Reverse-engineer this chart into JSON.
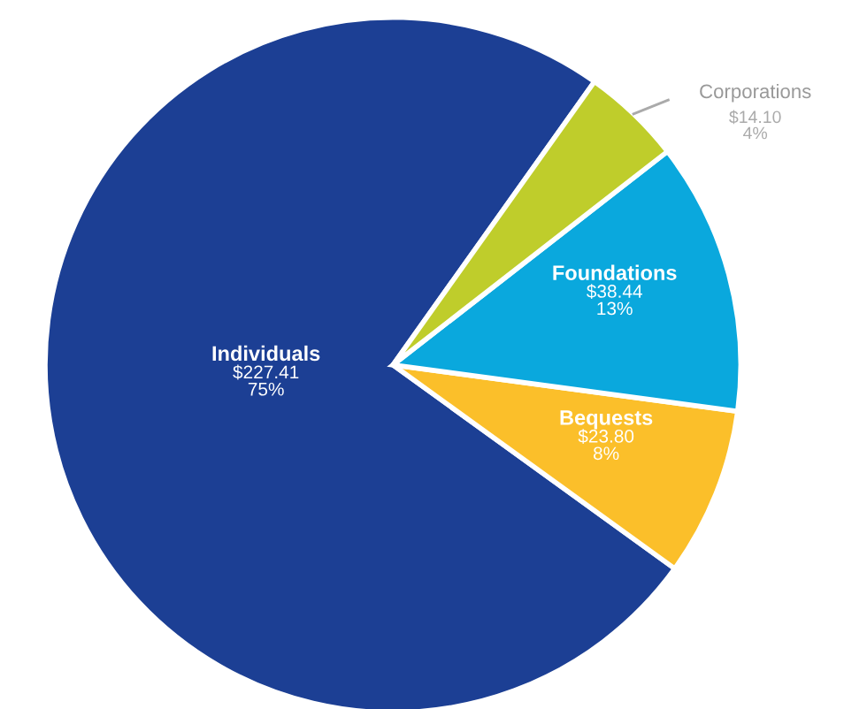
{
  "chart_data": {
    "type": "pie",
    "categories": [
      "Individuals",
      "Bequests",
      "Foundations",
      "Corporations"
    ],
    "values": [
      227.41,
      23.8,
      38.44,
      14.1
    ],
    "colors": [
      "#1c3f94",
      "#fbbf2a",
      "#0aa8dd",
      "#bfcd2b"
    ],
    "value_labels": [
      "$227.41\n75%",
      "$23.80\n8%",
      "$38.44\n13%",
      "$14.10\n4%"
    ],
    "legend": false
  }
}
